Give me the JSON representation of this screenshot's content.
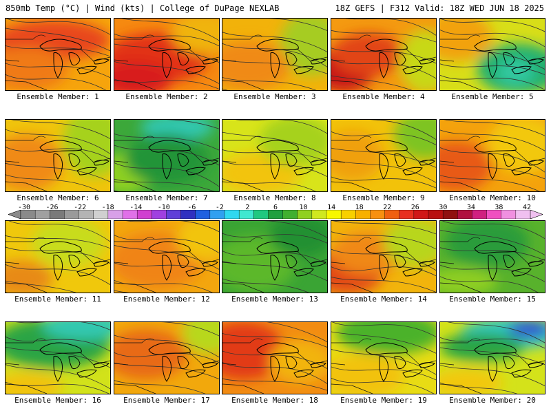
{
  "header": {
    "left": "850mb Temp (°C) | Wind (kts) | College of DuPage NEXLAB",
    "right": "18Z GEFS | F312 Valid: 18Z WED JUN 18 2025"
  },
  "colorbar": {
    "labels": [
      "-30",
      "-26",
      "-22",
      "-18",
      "-14",
      "-10",
      "-6",
      "-2",
      "2",
      "6",
      "10",
      "14",
      "18",
      "22",
      "26",
      "30",
      "34",
      "38",
      "42"
    ],
    "colors": [
      "#8a8a8a",
      "#a0a0a0",
      "#7a7a7a",
      "#9a9a9a",
      "#b4b4b4",
      "#d0d0d0",
      "#d8a0e8",
      "#e070e8",
      "#d040d0",
      "#a040e0",
      "#6040d8",
      "#3030c0",
      "#2060e0",
      "#30a0f0",
      "#30d8f0",
      "#40e8d0",
      "#20c880",
      "#20a040",
      "#40b030",
      "#90d020",
      "#d0e820",
      "#f8f800",
      "#f8d000",
      "#f8b000",
      "#f89010",
      "#f06010",
      "#e83020",
      "#d01818",
      "#b81010",
      "#901010",
      "#b01040",
      "#d02080",
      "#f050c0",
      "#f090e0",
      "#f0c0f0"
    ]
  },
  "members": [
    {
      "label": "Ensemble Member: 1",
      "base": "#f6a40c",
      "blobs": [
        [
          "#e8461a",
          0.45,
          0.3,
          0.55,
          0.28
        ],
        [
          "#f07a12",
          0.2,
          0.7,
          0.4,
          0.3
        ]
      ]
    },
    {
      "label": "Ensemble Member: 2",
      "base": "#f68a10",
      "blobs": [
        [
          "#e23018",
          0.4,
          0.55,
          0.5,
          0.35
        ],
        [
          "#d81c1c",
          0.2,
          0.85,
          0.35,
          0.25
        ],
        [
          "#f0b40a",
          0.85,
          0.2,
          0.3,
          0.3
        ]
      ]
    },
    {
      "label": "Ensemble Member: 3",
      "base": "#f2b20a",
      "blobs": [
        [
          "#a6cc20",
          0.85,
          0.35,
          0.3,
          0.45
        ],
        [
          "#f08a14",
          0.25,
          0.65,
          0.4,
          0.35
        ]
      ]
    },
    {
      "label": "Ensemble Member: 4",
      "base": "#f49a10",
      "blobs": [
        [
          "#c81818",
          0.12,
          0.72,
          0.3,
          0.3
        ],
        [
          "#e24418",
          0.35,
          0.5,
          0.35,
          0.3
        ],
        [
          "#c8d818",
          0.9,
          0.6,
          0.25,
          0.45
        ]
      ]
    },
    {
      "label": "Ensemble Member: 5",
      "base": "#d8de18",
      "blobs": [
        [
          "#20b070",
          0.75,
          0.7,
          0.4,
          0.35
        ],
        [
          "#32c8a0",
          0.72,
          0.75,
          0.18,
          0.18
        ],
        [
          "#f2a20c",
          0.15,
          0.25,
          0.35,
          0.35
        ]
      ]
    },
    {
      "label": "Ensemble Member: 6",
      "base": "#f0c40c",
      "blobs": [
        [
          "#a6d21c",
          0.85,
          0.3,
          0.3,
          0.5
        ],
        [
          "#f08a14",
          0.2,
          0.6,
          0.35,
          0.4
        ]
      ]
    },
    {
      "label": "Ensemble Member: 7",
      "base": "#3ca83a",
      "blobs": [
        [
          "#30c8b0",
          0.6,
          0.1,
          0.35,
          0.18
        ],
        [
          "#8ed020",
          0.1,
          0.75,
          0.25,
          0.3
        ],
        [
          "#249438",
          0.5,
          0.55,
          0.4,
          0.35
        ]
      ]
    },
    {
      "label": "Ensemble Member: 8",
      "base": "#d8e41a",
      "blobs": [
        [
          "#f2c40a",
          0.35,
          0.75,
          0.4,
          0.3
        ],
        [
          "#a6d21c",
          0.7,
          0.3,
          0.35,
          0.35
        ]
      ]
    },
    {
      "label": "Ensemble Member: 9",
      "base": "#f2c20a",
      "blobs": [
        [
          "#7ec424",
          0.9,
          0.2,
          0.3,
          0.35
        ],
        [
          "#f0a010",
          0.2,
          0.5,
          0.3,
          0.35
        ]
      ]
    },
    {
      "label": "Ensemble Member: 10",
      "base": "#f4a20c",
      "blobs": [
        [
          "#e85a16",
          0.15,
          0.65,
          0.35,
          0.35
        ],
        [
          "#f2c80c",
          0.8,
          0.35,
          0.35,
          0.4
        ]
      ]
    },
    {
      "label": "Ensemble Member: 11",
      "base": "#f0c80c",
      "blobs": [
        [
          "#e88a14",
          0.15,
          0.8,
          0.3,
          0.25
        ],
        [
          "#c8dc1a",
          0.6,
          0.3,
          0.35,
          0.35
        ]
      ]
    },
    {
      "label": "Ensemble Member: 12",
      "base": "#f3a60e",
      "blobs": [
        [
          "#f08412",
          0.4,
          0.55,
          0.45,
          0.4
        ],
        [
          "#f2c40c",
          0.85,
          0.25,
          0.25,
          0.3
        ]
      ]
    },
    {
      "label": "Ensemble Member: 13",
      "base": "#3aa434",
      "blobs": [
        [
          "#5cb82c",
          0.3,
          0.6,
          0.4,
          0.4
        ],
        [
          "#249030",
          0.75,
          0.2,
          0.3,
          0.3
        ]
      ]
    },
    {
      "label": "Ensemble Member: 14",
      "base": "#f2b40c",
      "blobs": [
        [
          "#e24818",
          0.15,
          0.72,
          0.35,
          0.3
        ],
        [
          "#f08812",
          0.35,
          0.45,
          0.35,
          0.3
        ],
        [
          "#b8d61c",
          0.8,
          0.3,
          0.3,
          0.35
        ]
      ]
    },
    {
      "label": "Ensemble Member: 15",
      "base": "#58b22c",
      "blobs": [
        [
          "#2a9c3a",
          0.45,
          0.3,
          0.4,
          0.35
        ],
        [
          "#8ece20",
          0.2,
          0.85,
          0.35,
          0.2
        ]
      ]
    },
    {
      "label": "Ensemble Member: 16",
      "base": "#d2e21a",
      "blobs": [
        [
          "#2aa444",
          0.45,
          0.3,
          0.55,
          0.35
        ],
        [
          "#32c8b0",
          0.75,
          0.05,
          0.4,
          0.2
        ],
        [
          "#f2c20a",
          0.2,
          0.9,
          0.35,
          0.2
        ]
      ]
    },
    {
      "label": "Ensemble Member: 17",
      "base": "#f2a80c",
      "blobs": [
        [
          "#e86a16",
          0.3,
          0.45,
          0.4,
          0.35
        ],
        [
          "#b8d81c",
          0.9,
          0.15,
          0.25,
          0.3
        ]
      ]
    },
    {
      "label": "Ensemble Member: 18",
      "base": "#f28c12",
      "blobs": [
        [
          "#e23a18",
          0.2,
          0.4,
          0.4,
          0.4
        ],
        [
          "#f2b40c",
          0.75,
          0.55,
          0.3,
          0.3
        ]
      ]
    },
    {
      "label": "Ensemble Member: 19",
      "base": "#e8dc14",
      "blobs": [
        [
          "#4cb22c",
          0.55,
          0.15,
          0.5,
          0.3
        ],
        [
          "#f2c20a",
          0.3,
          0.75,
          0.4,
          0.3
        ]
      ]
    },
    {
      "label": "Ensemble Member: 20",
      "base": "#d4e21a",
      "blobs": [
        [
          "#30c8c0",
          0.7,
          0.15,
          0.5,
          0.22
        ],
        [
          "#3050d0",
          0.85,
          0.1,
          0.2,
          0.12
        ],
        [
          "#2aa444",
          0.4,
          0.35,
          0.4,
          0.2
        ],
        [
          "#f2c80c",
          0.25,
          0.85,
          0.35,
          0.2
        ]
      ]
    }
  ]
}
